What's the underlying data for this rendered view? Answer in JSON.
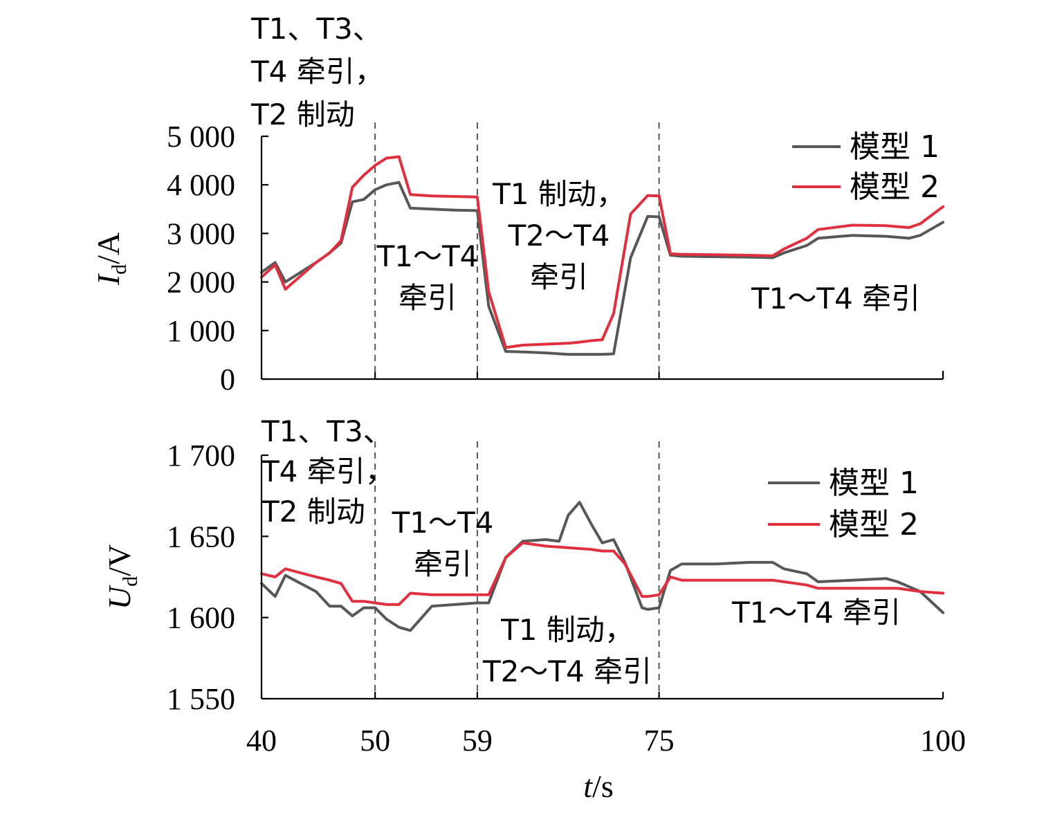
{
  "colors": {
    "model1": "#575757",
    "model2": "#e0303f",
    "axis": "#000000",
    "divider": "#555555"
  },
  "x_axis": {
    "label_italic": "t",
    "label_rest": "/s",
    "ticks": [
      40,
      50,
      59,
      75,
      100
    ],
    "tick_labels": [
      "40",
      "50",
      "59",
      "75",
      "100"
    ]
  },
  "chart_data": [
    {
      "type": "line",
      "ylabel_symbol": "I",
      "ylabel_sub": "d",
      "ylabel_unit": "/A",
      "xlim": [
        40,
        100
      ],
      "ylim": [
        0,
        5000
      ],
      "yticks": [
        0,
        1000,
        2000,
        3000,
        4000,
        5000
      ],
      "ytick_labels": [
        "0",
        "1 000",
        "2 000",
        "3 000",
        "4 000",
        "5 000"
      ],
      "dividers": [
        50,
        59,
        75
      ],
      "legend": {
        "position": "top-right",
        "entries": [
          "模型 1",
          "模型 2"
        ]
      },
      "annotations": {
        "seg0": [
          "T1、T3、",
          "T4 牵引，",
          "T2 制动"
        ],
        "seg1": [
          "T1～T4",
          "牵引"
        ],
        "seg2": [
          "T1 制动，",
          "T2～T4",
          "牵引"
        ],
        "seg3": [
          "T1～T4 牵引"
        ]
      },
      "series": [
        {
          "name": "模型 1",
          "x": [
            40,
            41.2,
            42.1,
            44.8,
            46,
            47,
            48,
            49,
            50,
            51,
            52.1,
            53.1,
            55,
            57,
            59,
            60,
            61.5,
            63,
            65,
            67,
            68,
            69,
            70,
            71,
            72.5,
            74,
            75,
            76,
            77,
            80,
            83,
            85,
            86,
            88,
            89,
            92,
            95,
            96,
            97,
            98,
            100
          ],
          "y": [
            2200,
            2400,
            2000,
            2400,
            2600,
            2800,
            3650,
            3700,
            3900,
            4000,
            4050,
            3520,
            3500,
            3480,
            3470,
            1500,
            570,
            560,
            540,
            510,
            510,
            510,
            510,
            520,
            2500,
            3350,
            3340,
            2550,
            2530,
            2520,
            2510,
            2500,
            2600,
            2750,
            2900,
            2960,
            2940,
            2920,
            2900,
            2960,
            3230
          ]
        },
        {
          "name": "模型 2",
          "x": [
            40,
            41.2,
            42.1,
            44.8,
            46,
            47,
            48,
            49,
            50,
            51,
            52.1,
            53.1,
            55,
            57,
            59,
            60,
            61.5,
            63,
            65,
            67,
            68,
            69,
            70,
            71,
            72.5,
            74,
            75,
            76,
            77,
            80,
            83,
            85,
            86,
            88,
            89,
            92,
            95,
            96,
            97,
            98,
            100
          ],
          "y": [
            2100,
            2350,
            1850,
            2400,
            2600,
            2850,
            3950,
            4200,
            4400,
            4550,
            4580,
            3800,
            3770,
            3760,
            3750,
            1800,
            650,
            700,
            720,
            740,
            760,
            790,
            810,
            1350,
            3400,
            3780,
            3770,
            2580,
            2570,
            2560,
            2550,
            2540,
            2680,
            2900,
            3080,
            3170,
            3160,
            3140,
            3120,
            3200,
            3550
          ]
        }
      ]
    },
    {
      "type": "line",
      "ylabel_symbol": "U",
      "ylabel_sub": "d",
      "ylabel_unit": "/V",
      "xlim": [
        40,
        100
      ],
      "ylim": [
        1550,
        1700
      ],
      "yticks": [
        1550,
        1600,
        1650,
        1700
      ],
      "ytick_labels": [
        "1 550",
        "1 600",
        "1 650",
        "1 700"
      ],
      "dividers": [
        50,
        59,
        75
      ],
      "legend": {
        "position": "top-right",
        "entries": [
          "模型 1",
          "模型 2"
        ]
      },
      "annotations": {
        "seg0": [
          "T1、T3、",
          "T4 牵引，",
          "T2 制动"
        ],
        "seg1": [
          "T1～T4",
          "牵引"
        ],
        "seg2": [
          "T1 制动，",
          "T2～T4 牵引"
        ],
        "seg3": [
          "T1～T4 牵引"
        ]
      },
      "series": [
        {
          "name": "模型 1",
          "x": [
            40,
            41.2,
            42.1,
            44.8,
            46,
            47,
            48,
            49,
            50,
            51,
            52.1,
            53.1,
            55,
            57,
            59,
            60,
            61.5,
            63,
            65,
            66.2,
            67,
            68,
            69,
            70,
            71,
            72,
            73.5,
            74,
            75,
            76,
            77,
            80,
            83,
            85,
            86,
            88,
            89,
            92,
            95,
            96,
            97,
            98,
            100
          ],
          "y": [
            1621,
            1613,
            1626,
            1616,
            1607,
            1607,
            1601,
            1606,
            1606,
            1599,
            1594,
            1592,
            1607,
            1608,
            1609,
            1609,
            1637,
            1647,
            1648,
            1647,
            1663,
            1671,
            1658,
            1646,
            1648,
            1634,
            1606,
            1605,
            1606,
            1629,
            1633,
            1633,
            1634,
            1634,
            1630,
            1627,
            1622,
            1623,
            1624,
            1622,
            1619,
            1616,
            1603
          ]
        },
        {
          "name": "模型 2",
          "x": [
            40,
            41.2,
            42.1,
            44.8,
            46,
            47,
            48,
            49,
            50,
            51,
            52.1,
            53.1,
            55,
            57,
            59,
            60,
            61.5,
            63,
            65,
            67,
            69,
            70,
            71,
            72,
            73.5,
            74,
            75,
            76,
            77,
            80,
            83,
            85,
            86,
            88,
            89,
            92,
            95,
            96,
            97,
            98,
            100
          ],
          "y": [
            1627,
            1625,
            1630,
            1625,
            1623,
            1621,
            1610,
            1610,
            1609,
            1608,
            1608,
            1615,
            1614,
            1614,
            1614,
            1614,
            1637,
            1646,
            1644,
            1643,
            1642,
            1641,
            1641,
            1633,
            1613,
            1613,
            1614,
            1625,
            1623,
            1623,
            1623,
            1623,
            1622,
            1620,
            1618,
            1618,
            1618,
            1618,
            1617,
            1616,
            1615
          ]
        }
      ]
    }
  ]
}
